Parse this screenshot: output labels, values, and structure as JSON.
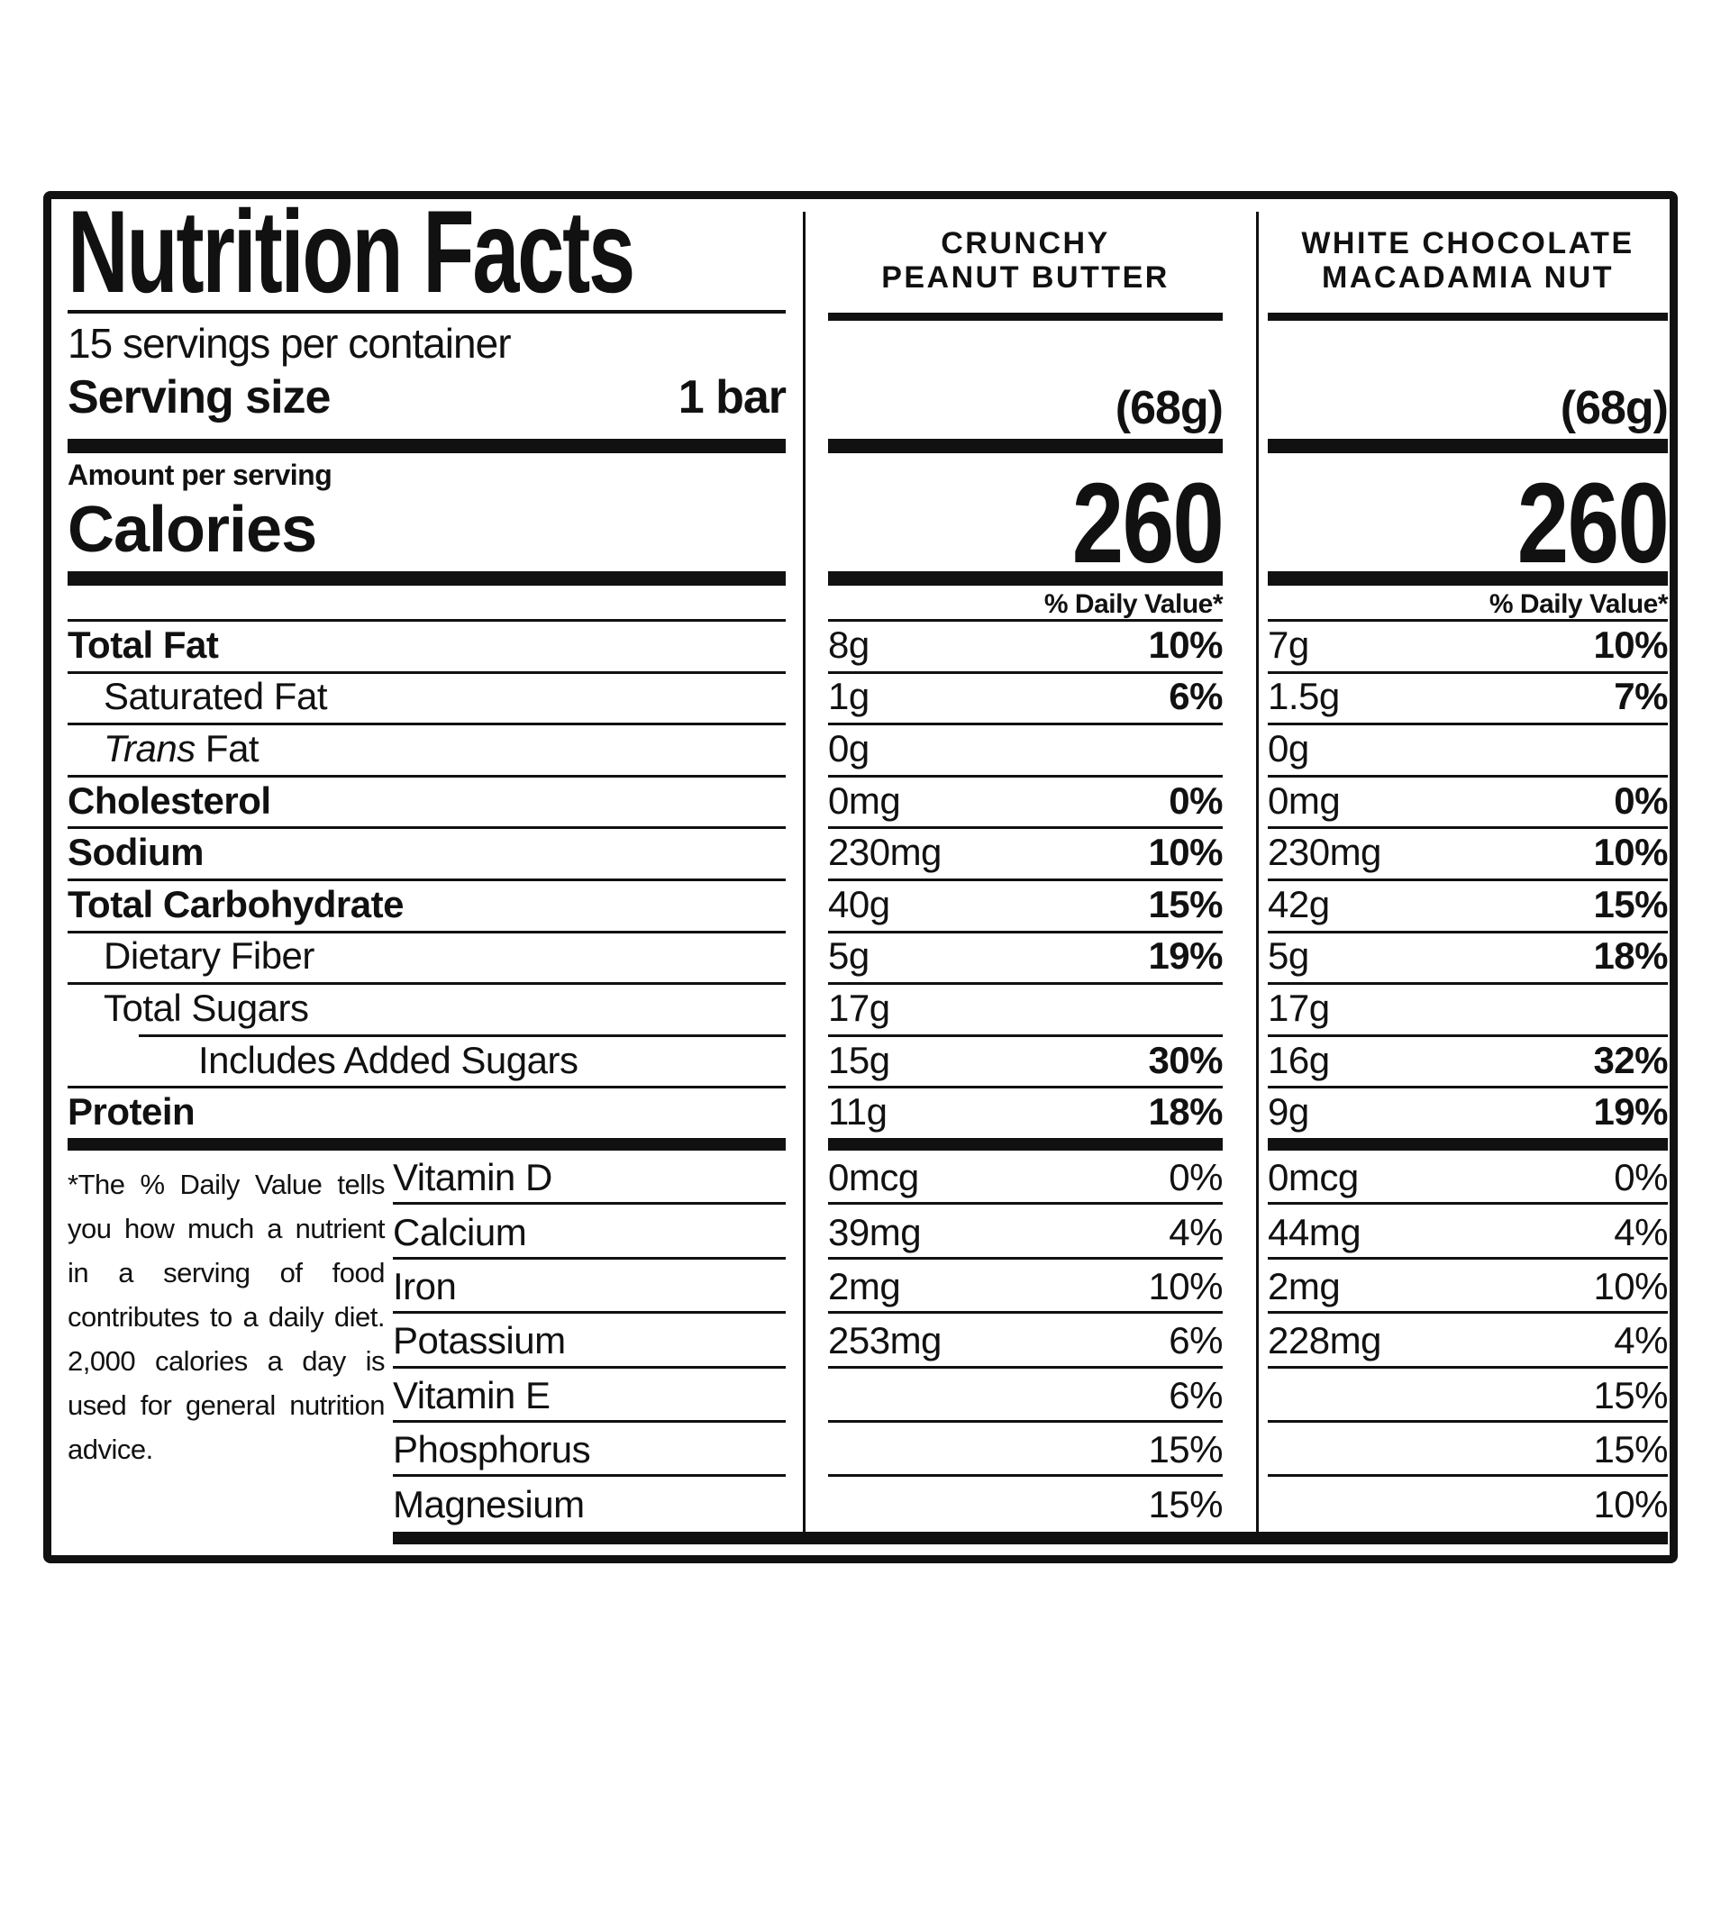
{
  "nutrition_label": {
    "title": "Nutrition Facts",
    "servings_per_container": "15 servings per container",
    "serving_size": {
      "label": "Serving size",
      "value": "1 bar"
    },
    "amount_per_serving": "Amount per serving",
    "calories_label": "Calories",
    "daily_value_header": "% Daily Value*",
    "flavors": [
      {
        "line1": "CRUNCHY",
        "line2": "PEANUT BUTTER",
        "weight": "(68g)",
        "calories": "260"
      },
      {
        "line1": "WHITE CHOCOLATE",
        "line2": "MACADAMIA NUT",
        "weight": "(68g)",
        "calories": "260"
      }
    ],
    "nutrients": [
      {
        "name": "Total Fat",
        "values": [
          {
            "amount": "8g",
            "dv": "10%"
          },
          {
            "amount": "7g",
            "dv": "10%"
          }
        ]
      },
      {
        "name": "Saturated Fat",
        "values": [
          {
            "amount": "1g",
            "dv": "6%"
          },
          {
            "amount": "1.5g",
            "dv": "7%"
          }
        ]
      },
      {
        "italic_prefix": "Trans",
        "name": " Fat",
        "values": [
          {
            "amount": "0g",
            "dv": ""
          },
          {
            "amount": "0g",
            "dv": ""
          }
        ]
      },
      {
        "name": "Cholesterol",
        "values": [
          {
            "amount": "0mg",
            "dv": "0%"
          },
          {
            "amount": "0mg",
            "dv": "0%"
          }
        ]
      },
      {
        "name": "Sodium",
        "values": [
          {
            "amount": "230mg",
            "dv": "10%"
          },
          {
            "amount": "230mg",
            "dv": "10%"
          }
        ]
      },
      {
        "name": "Total Carbohydrate",
        "values": [
          {
            "amount": "40g",
            "dv": "15%"
          },
          {
            "amount": "42g",
            "dv": "15%"
          }
        ]
      },
      {
        "name": "Dietary Fiber",
        "values": [
          {
            "amount": "5g",
            "dv": "19%"
          },
          {
            "amount": "5g",
            "dv": "18%"
          }
        ]
      },
      {
        "name": "Total Sugars",
        "values": [
          {
            "amount": "17g",
            "dv": ""
          },
          {
            "amount": "17g",
            "dv": ""
          }
        ]
      },
      {
        "name": "Includes Added Sugars",
        "values": [
          {
            "amount": "15g",
            "dv": "30%"
          },
          {
            "amount": "16g",
            "dv": "32%"
          }
        ]
      },
      {
        "name": "Protein",
        "values": [
          {
            "amount": "11g",
            "dv": "18%"
          },
          {
            "amount": "9g",
            "dv": "19%"
          }
        ]
      }
    ],
    "vitamins": [
      {
        "name": "Vitamin D",
        "values": [
          {
            "amount": "0mcg",
            "dv": "0%"
          },
          {
            "amount": "0mcg",
            "dv": "0%"
          }
        ]
      },
      {
        "name": "Calcium",
        "values": [
          {
            "amount": "39mg",
            "dv": "4%"
          },
          {
            "amount": "44mg",
            "dv": "4%"
          }
        ]
      },
      {
        "name": "Iron",
        "values": [
          {
            "amount": "2mg",
            "dv": "10%"
          },
          {
            "amount": "2mg",
            "dv": "10%"
          }
        ]
      },
      {
        "name": "Potassium",
        "values": [
          {
            "amount": "253mg",
            "dv": "6%"
          },
          {
            "amount": "228mg",
            "dv": "4%"
          }
        ]
      },
      {
        "name": "Vitamin E",
        "values": [
          {
            "amount": "",
            "dv": "6%"
          },
          {
            "amount": "",
            "dv": "15%"
          }
        ]
      },
      {
        "name": "Phosphorus",
        "values": [
          {
            "amount": "",
            "dv": "15%"
          },
          {
            "amount": "",
            "dv": "15%"
          }
        ]
      },
      {
        "name": "Magnesium",
        "values": [
          {
            "amount": "",
            "dv": "15%"
          },
          {
            "amount": "",
            "dv": "10%"
          }
        ]
      }
    ],
    "footnote": "*The % Daily Value tells you how much a nutrient in a serving of food contributes to a daily diet. 2,000 calories a day is used for general nutrition advice.",
    "colors": {
      "ink": "#111111",
      "background": "#ffffff"
    }
  }
}
